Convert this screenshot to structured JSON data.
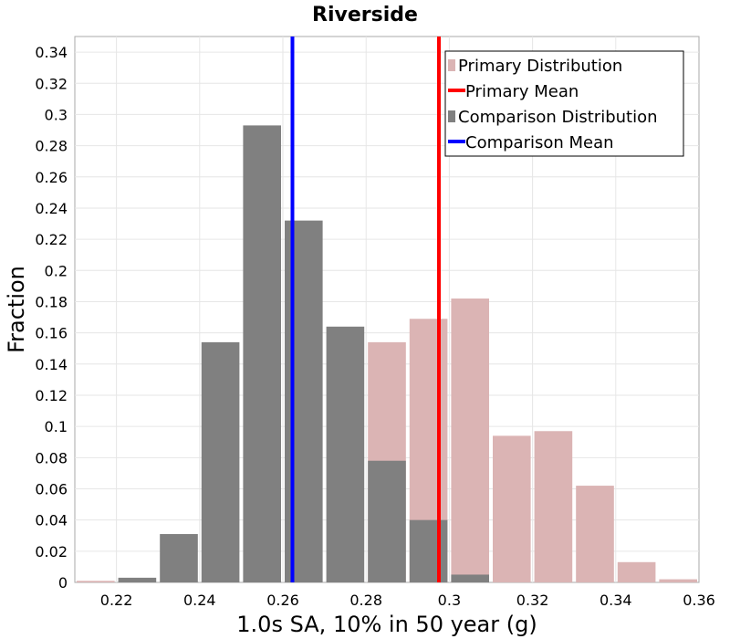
{
  "chart_data": {
    "type": "bar",
    "title": "Riverside",
    "xlabel": "1.0s SA, 10% in 50 year (g)",
    "ylabel": "Fraction",
    "xlim": [
      0.21,
      0.36
    ],
    "ylim": [
      0,
      0.35
    ],
    "bin_width": 0.01,
    "x_ticks": [
      0.22,
      0.24,
      0.26,
      0.28,
      0.3,
      0.32,
      0.34,
      0.36
    ],
    "x_tick_labels": [
      "0.22",
      "0.24",
      "0.26",
      "0.28",
      "0.3",
      "0.32",
      "0.34",
      "0.36"
    ],
    "y_ticks": [
      0,
      0.02,
      0.04,
      0.06,
      0.08,
      0.1,
      0.12,
      0.14,
      0.16,
      0.18,
      0.2,
      0.22,
      0.24,
      0.26,
      0.28,
      0.3,
      0.32,
      0.34
    ],
    "y_tick_labels": [
      "0",
      "0.02",
      "0.04",
      "0.06",
      "0.08",
      "0.1",
      "0.12",
      "0.14",
      "0.16",
      "0.18",
      "0.2",
      "0.22",
      "0.24",
      "0.26",
      "0.28",
      "0.3",
      "0.32",
      "0.34"
    ],
    "series": [
      {
        "name": "Primary Distribution",
        "kind": "histogram",
        "color": "#dbb4b4",
        "bin_centers": [
          0.215,
          0.225,
          0.235,
          0.245,
          0.255,
          0.265,
          0.275,
          0.285,
          0.295,
          0.305,
          0.315,
          0.325,
          0.335,
          0.345,
          0.355
        ],
        "values": [
          0.001,
          0,
          0,
          0,
          0,
          0,
          0,
          0.154,
          0.169,
          0.182,
          0.094,
          0.097,
          0.062,
          0.013,
          0.002
        ]
      },
      {
        "name": "Primary Mean",
        "kind": "vline",
        "color": "#ff0000",
        "x": 0.2975
      },
      {
        "name": "Comparison Distribution",
        "kind": "histogram",
        "color": "#808080",
        "bin_centers": [
          0.225,
          0.235,
          0.245,
          0.255,
          0.265,
          0.275,
          0.285,
          0.295,
          0.305
        ],
        "values": [
          0.003,
          0.031,
          0.154,
          0.293,
          0.232,
          0.164,
          0.078,
          0.04,
          0.005
        ]
      },
      {
        "name": "Comparison Mean",
        "kind": "vline",
        "color": "#0000ff",
        "x": 0.2623
      }
    ],
    "grid": true,
    "legend_position": "top-right"
  }
}
